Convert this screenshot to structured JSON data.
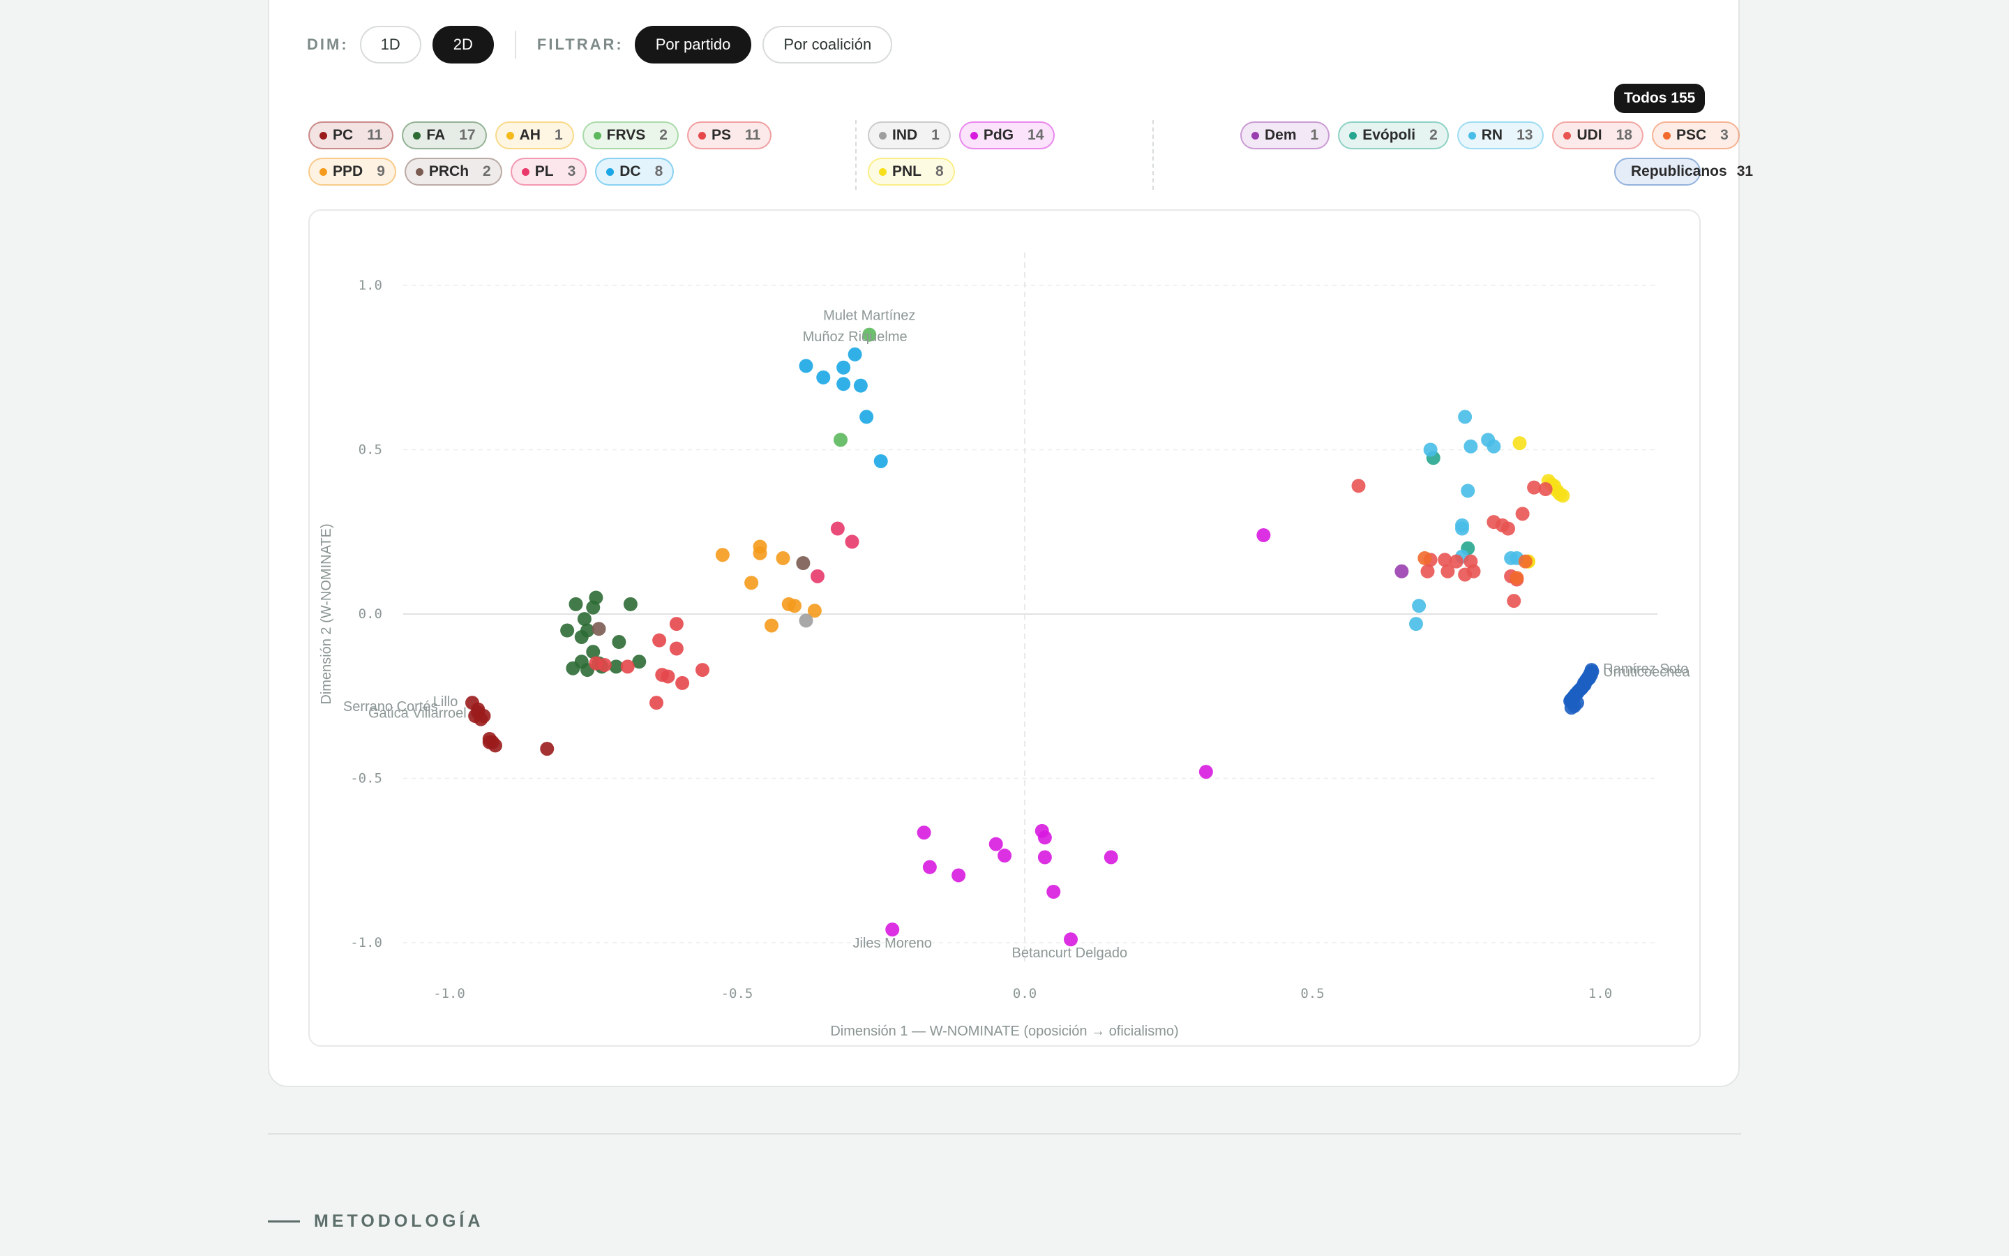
{
  "toolbar": {
    "dim_label": "DIM:",
    "dim_options": [
      "1D",
      "2D"
    ],
    "dim_active": "2D",
    "filter_label": "FILTRAR:",
    "filter_options": [
      "Por partido",
      "Por coalición"
    ],
    "filter_active": "Por partido"
  },
  "parties": {
    "left": [
      {
        "name": "PC",
        "count": "11",
        "color": "#9b1c1c"
      },
      {
        "name": "FA",
        "count": "17",
        "color": "#2e6b35"
      },
      {
        "name": "AH",
        "count": "1",
        "color": "#f5b91c"
      },
      {
        "name": "FRVS",
        "count": "2",
        "color": "#5cb85c"
      },
      {
        "name": "PS",
        "count": "11",
        "color": "#e5474b"
      },
      {
        "name": "PPD",
        "count": "9",
        "color": "#f59a1c"
      },
      {
        "name": "PRCh",
        "count": "2",
        "color": "#7b5c52"
      },
      {
        "name": "PL",
        "count": "3",
        "color": "#e8396a"
      },
      {
        "name": "DC",
        "count": "8",
        "color": "#1ba7e6"
      }
    ],
    "center": [
      {
        "name": "IND",
        "count": "1",
        "color": "#9e9e9e"
      },
      {
        "name": "PdG",
        "count": "14",
        "color": "#d81ae0"
      },
      {
        "name": "PNL",
        "count": "8",
        "color": "#f7e01a"
      }
    ],
    "right": [
      {
        "name": "Dem",
        "count": "1",
        "color": "#9a3fb0"
      },
      {
        "name": "Evópoli",
        "count": "2",
        "color": "#26a68e"
      },
      {
        "name": "RN",
        "count": "13",
        "color": "#48bde8"
      },
      {
        "name": "UDI",
        "count": "18",
        "color": "#e85452"
      },
      {
        "name": "PSC",
        "count": "3",
        "color": "#f26a2e"
      }
    ],
    "republicanos": {
      "name": "Republicanos",
      "count": "31",
      "color": "#1c5fc2"
    },
    "todos": {
      "label": "Todos",
      "count": "155"
    }
  },
  "chart_data": {
    "type": "scatter",
    "title": "",
    "xlabel": "Dimensión 1 — W-NOMINATE (oposición → oficialismo)",
    "ylabel": "Dimensión 2 (W-NOMINATE)",
    "xlim": [
      -1.1,
      1.1
    ],
    "ylim": [
      -1.08,
      1.12
    ],
    "xticks": [
      "-1.0",
      "-0.5",
      "0.0",
      "0.5",
      "1.0"
    ],
    "yticks": [
      "1.0",
      "0.5",
      "0.0",
      "-0.5",
      "-1.0"
    ],
    "grid": "horizontal-dashed",
    "series": [
      {
        "name": "PC",
        "color": "#9b1c1c",
        "points": [
          [
            -0.96,
            -0.27
          ],
          [
            -0.95,
            -0.29
          ],
          [
            -0.955,
            -0.31
          ],
          [
            -0.945,
            -0.32
          ],
          [
            -0.93,
            -0.38
          ],
          [
            -0.925,
            -0.39
          ],
          [
            -0.92,
            -0.4
          ],
          [
            -0.83,
            -0.41
          ],
          [
            -0.95,
            -0.3
          ],
          [
            -0.94,
            -0.31
          ],
          [
            -0.93,
            -0.39
          ]
        ]
      },
      {
        "name": "FA",
        "color": "#2e6b35",
        "points": [
          [
            -0.78,
            0.03
          ],
          [
            -0.75,
            0.02
          ],
          [
            -0.745,
            0.05
          ],
          [
            -0.685,
            0.03
          ],
          [
            -0.765,
            -0.015
          ],
          [
            -0.795,
            -0.05
          ],
          [
            -0.77,
            -0.07
          ],
          [
            -0.76,
            -0.05
          ],
          [
            -0.705,
            -0.085
          ],
          [
            -0.75,
            -0.115
          ],
          [
            -0.77,
            -0.145
          ],
          [
            -0.785,
            -0.165
          ],
          [
            -0.76,
            -0.17
          ],
          [
            -0.74,
            -0.15
          ],
          [
            -0.71,
            -0.16
          ],
          [
            -0.67,
            -0.145
          ],
          [
            -0.735,
            -0.16
          ]
        ]
      },
      {
        "name": "AH",
        "color": "#f5b91c",
        "points": [
          [
            0.875,
            0.16
          ]
        ]
      },
      {
        "name": "FRVS",
        "color": "#5cb85c",
        "points": [
          [
            -0.27,
            0.85
          ],
          [
            -0.32,
            0.53
          ]
        ]
      },
      {
        "name": "PS",
        "color": "#e5474b",
        "points": [
          [
            -0.605,
            -0.03
          ],
          [
            -0.635,
            -0.08
          ],
          [
            -0.605,
            -0.105
          ],
          [
            -0.63,
            -0.185
          ],
          [
            -0.62,
            -0.19
          ],
          [
            -0.595,
            -0.21
          ],
          [
            -0.56,
            -0.17
          ],
          [
            -0.64,
            -0.27
          ],
          [
            -0.73,
            -0.155
          ],
          [
            -0.745,
            -0.15
          ],
          [
            -0.69,
            -0.16
          ]
        ]
      },
      {
        "name": "PPD",
        "color": "#f59a1c",
        "points": [
          [
            -0.525,
            0.18
          ],
          [
            -0.46,
            0.205
          ],
          [
            -0.46,
            0.185
          ],
          [
            -0.42,
            0.17
          ],
          [
            -0.475,
            0.095
          ],
          [
            -0.41,
            0.03
          ],
          [
            -0.4,
            0.025
          ],
          [
            -0.365,
            0.01
          ],
          [
            -0.44,
            -0.035
          ]
        ]
      },
      {
        "name": "PRCh",
        "color": "#7b5c52",
        "points": [
          [
            -0.385,
            0.155
          ],
          [
            -0.74,
            -0.045
          ]
        ]
      },
      {
        "name": "PL",
        "color": "#e8396a",
        "points": [
          [
            -0.325,
            0.26
          ],
          [
            -0.3,
            0.22
          ],
          [
            -0.36,
            0.115
          ]
        ]
      },
      {
        "name": "DC",
        "color": "#1ba7e6",
        "points": [
          [
            -0.38,
            0.755
          ],
          [
            -0.35,
            0.72
          ],
          [
            -0.315,
            0.75
          ],
          [
            -0.315,
            0.7
          ],
          [
            -0.295,
            0.79
          ],
          [
            -0.285,
            0.695
          ],
          [
            -0.275,
            0.6
          ],
          [
            -0.25,
            0.465
          ]
        ]
      },
      {
        "name": "IND",
        "color": "#9e9e9e",
        "points": [
          [
            -0.38,
            -0.02
          ]
        ]
      },
      {
        "name": "PdG",
        "color": "#d81ae0",
        "points": [
          [
            0.415,
            0.24
          ],
          [
            0.315,
            -0.48
          ],
          [
            -0.175,
            -0.665
          ],
          [
            -0.165,
            -0.77
          ],
          [
            -0.115,
            -0.795
          ],
          [
            -0.05,
            -0.7
          ],
          [
            -0.035,
            -0.735
          ],
          [
            0.03,
            -0.66
          ],
          [
            0.035,
            -0.68
          ],
          [
            0.035,
            -0.74
          ],
          [
            0.05,
            -0.845
          ],
          [
            0.15,
            -0.74
          ],
          [
            0.08,
            -0.99
          ],
          [
            -0.23,
            -0.96
          ]
        ]
      },
      {
        "name": "PNL",
        "color": "#f7e01a",
        "points": [
          [
            0.86,
            0.52
          ],
          [
            0.91,
            0.405
          ],
          [
            0.92,
            0.39
          ],
          [
            0.925,
            0.375
          ],
          [
            0.93,
            0.365
          ],
          [
            0.935,
            0.36
          ],
          [
            0.875,
            0.16
          ],
          [
            0.915,
            0.395
          ]
        ]
      },
      {
        "name": "Dem",
        "color": "#9a3fb0",
        "points": [
          [
            0.655,
            0.13
          ]
        ]
      },
      {
        "name": "Evópoli",
        "color": "#26a68e",
        "points": [
          [
            0.71,
            0.475
          ],
          [
            0.77,
            0.2
          ]
        ]
      },
      {
        "name": "RN",
        "color": "#48bde8",
        "points": [
          [
            0.765,
            0.6
          ],
          [
            0.805,
            0.53
          ],
          [
            0.775,
            0.51
          ],
          [
            0.815,
            0.51
          ],
          [
            0.705,
            0.5
          ],
          [
            0.77,
            0.375
          ],
          [
            0.76,
            0.27
          ],
          [
            0.76,
            0.26
          ],
          [
            0.76,
            0.175
          ],
          [
            0.845,
            0.17
          ],
          [
            0.855,
            0.17
          ],
          [
            0.685,
            0.025
          ],
          [
            0.68,
            -0.03
          ]
        ]
      },
      {
        "name": "UDI",
        "color": "#e85452",
        "points": [
          [
            0.58,
            0.39
          ],
          [
            0.885,
            0.385
          ],
          [
            0.905,
            0.38
          ],
          [
            0.865,
            0.305
          ],
          [
            0.815,
            0.28
          ],
          [
            0.83,
            0.27
          ],
          [
            0.84,
            0.26
          ],
          [
            0.73,
            0.165
          ],
          [
            0.75,
            0.16
          ],
          [
            0.775,
            0.16
          ],
          [
            0.7,
            0.13
          ],
          [
            0.735,
            0.13
          ],
          [
            0.765,
            0.12
          ],
          [
            0.78,
            0.13
          ],
          [
            0.845,
            0.115
          ],
          [
            0.855,
            0.105
          ],
          [
            0.85,
            0.04
          ],
          [
            0.705,
            0.165
          ]
        ]
      },
      {
        "name": "PSC",
        "color": "#f26a2e",
        "points": [
          [
            0.695,
            0.17
          ],
          [
            0.87,
            0.16
          ],
          [
            0.855,
            0.11
          ]
        ]
      },
      {
        "name": "Republicanos",
        "color": "#1c5fc2",
        "points": [
          [
            0.985,
            -0.17
          ],
          [
            0.983,
            -0.18
          ],
          [
            0.98,
            -0.19
          ],
          [
            0.978,
            -0.2
          ],
          [
            0.975,
            -0.205
          ],
          [
            0.972,
            -0.21
          ],
          [
            0.97,
            -0.22
          ],
          [
            0.968,
            -0.225
          ],
          [
            0.965,
            -0.23
          ],
          [
            0.962,
            -0.235
          ],
          [
            0.96,
            -0.24
          ],
          [
            0.957,
            -0.245
          ],
          [
            0.955,
            -0.25
          ],
          [
            0.953,
            -0.255
          ],
          [
            0.95,
            -0.26
          ],
          [
            0.948,
            -0.265
          ],
          [
            0.986,
            -0.175
          ],
          [
            0.984,
            -0.185
          ],
          [
            0.981,
            -0.195
          ],
          [
            0.976,
            -0.2
          ],
          [
            0.973,
            -0.215
          ],
          [
            0.969,
            -0.222
          ],
          [
            0.966,
            -0.228
          ],
          [
            0.961,
            -0.238
          ],
          [
            0.958,
            -0.243
          ],
          [
            0.954,
            -0.252
          ],
          [
            0.951,
            -0.258
          ],
          [
            0.949,
            -0.262
          ],
          [
            0.96,
            -0.27
          ],
          [
            0.955,
            -0.28
          ],
          [
            0.95,
            -0.285
          ]
        ]
      }
    ],
    "labels": [
      {
        "text": "Mulet Martínez",
        "x": -0.27,
        "y": 0.895,
        "anchor": "middle"
      },
      {
        "text": "Muñoz Riquelme",
        "x": -0.295,
        "y": 0.83,
        "anchor": "middle"
      },
      {
        "text": "Jiles Moreno",
        "x": -0.23,
        "y": -1.015,
        "anchor": "middle"
      },
      {
        "text": "Betancurt Delgado",
        "x": 0.078,
        "y": -1.045,
        "anchor": "middle"
      },
      {
        "text": "Serrano Cortés",
        "x": -1.02,
        "y": -0.295,
        "anchor": "end"
      },
      {
        "text": "Lillo",
        "x": -0.985,
        "y": -0.28,
        "anchor": "end"
      },
      {
        "text": "Gatica Villarroel",
        "x": -0.97,
        "y": -0.315,
        "anchor": "end"
      },
      {
        "text": "Ramírez Soto",
        "x": 1.005,
        "y": -0.18,
        "anchor": "start"
      },
      {
        "text": "Urruticoechea",
        "x": 1.005,
        "y": -0.19,
        "anchor": "start"
      }
    ]
  },
  "footer": {
    "section_title": "METODOLOGÍA"
  }
}
